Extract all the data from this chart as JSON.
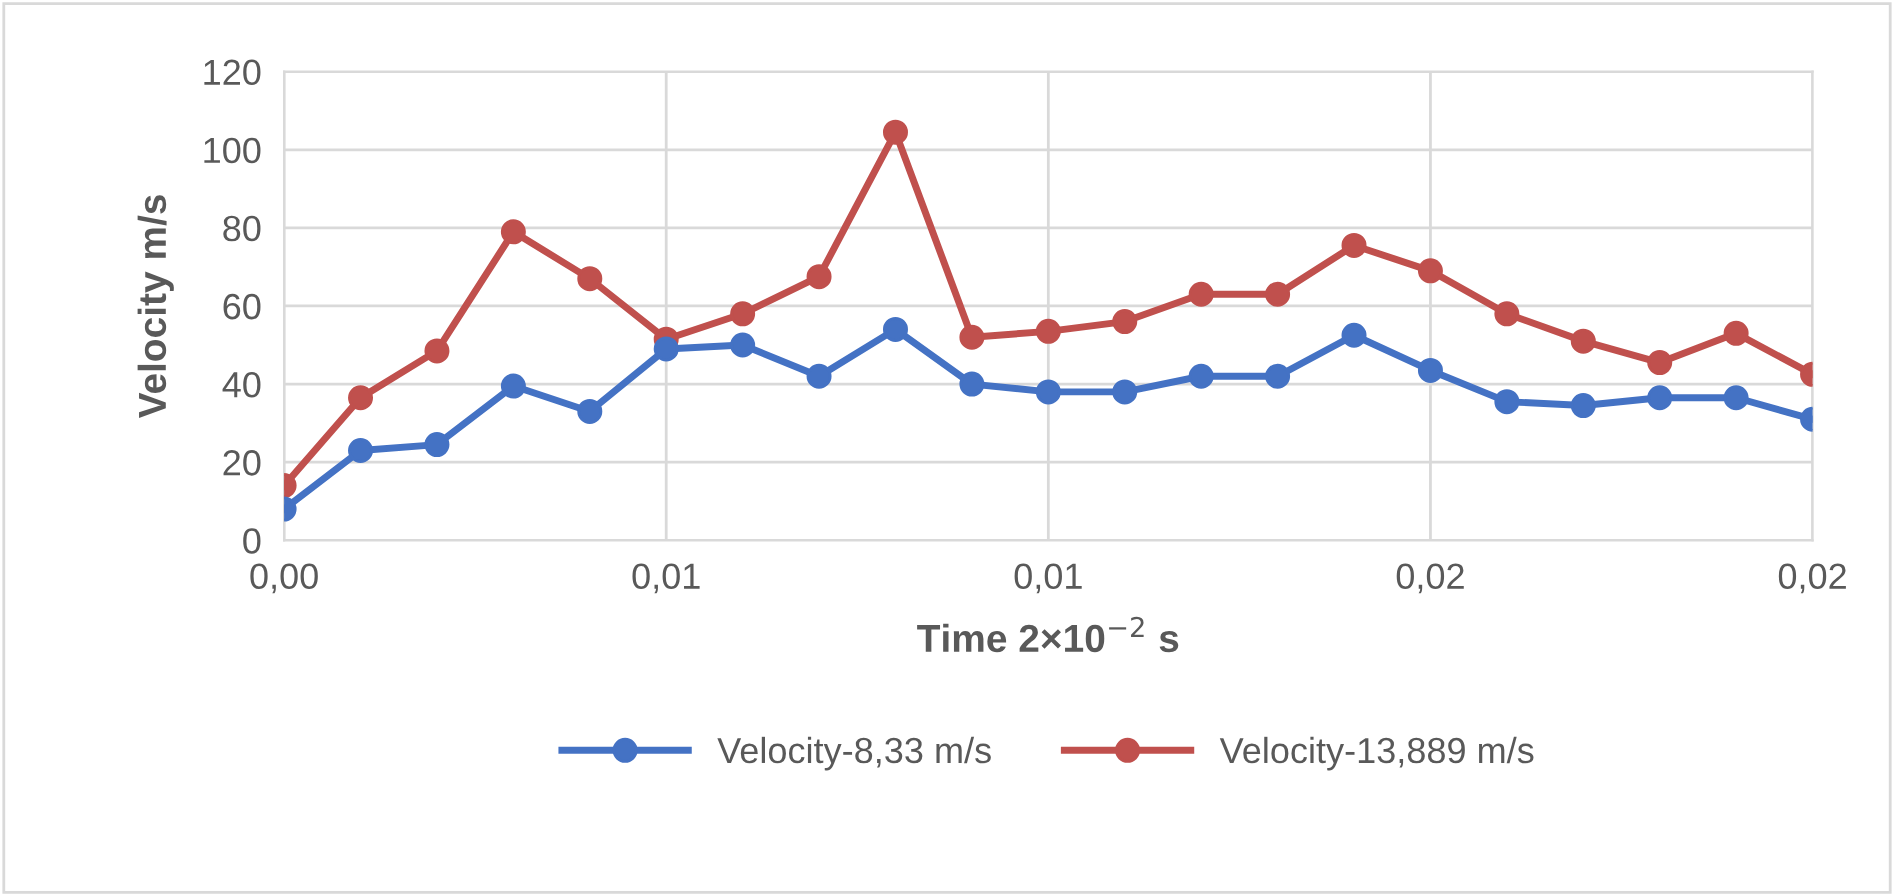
{
  "chart_data": {
    "type": "line",
    "xlabel": "Time 2×10$^{−2}$ s",
    "ylabel": "Velocity m/s",
    "x": [
      0,
      0.001,
      0.002,
      0.003,
      0.004,
      0.005,
      0.006,
      0.007,
      0.008,
      0.009,
      0.01,
      0.011,
      0.012,
      0.013,
      0.014,
      0.015,
      0.016,
      0.017,
      0.018,
      0.019,
      0.02
    ],
    "series": [
      {
        "name": "Velocity-8,33 m/s",
        "color": "#4472c4",
        "values": [
          8,
          23,
          24.5,
          39.5,
          33,
          49,
          50,
          42,
          54,
          40,
          38,
          38,
          42,
          42,
          52.5,
          43.5,
          35.5,
          34.5,
          36.5,
          36.5,
          31
        ]
      },
      {
        "name": "Velocity-13,889 m/s",
        "color": "#c0504d",
        "values": [
          14,
          36.5,
          48.5,
          79,
          67,
          51.5,
          58,
          67.5,
          104.5,
          52,
          53.5,
          56,
          63,
          63,
          75.5,
          69,
          58,
          51,
          45.5,
          53,
          42.5
        ]
      }
    ],
    "xlim": [
      0,
      0.02
    ],
    "ylim": [
      0,
      120
    ],
    "xticks": [
      {
        "value": 0,
        "label": "0,00"
      },
      {
        "value": 0.005,
        "label": "0,01"
      },
      {
        "value": 0.01,
        "label": "0,01"
      },
      {
        "value": 0.015,
        "label": "0,02"
      },
      {
        "value": 0.02,
        "label": "0,02"
      }
    ],
    "yticks": [
      0,
      20,
      40,
      60,
      80,
      100,
      120
    ],
    "grid": true,
    "legend": "bottom",
    "marker": "circle",
    "line_style": "solid"
  }
}
